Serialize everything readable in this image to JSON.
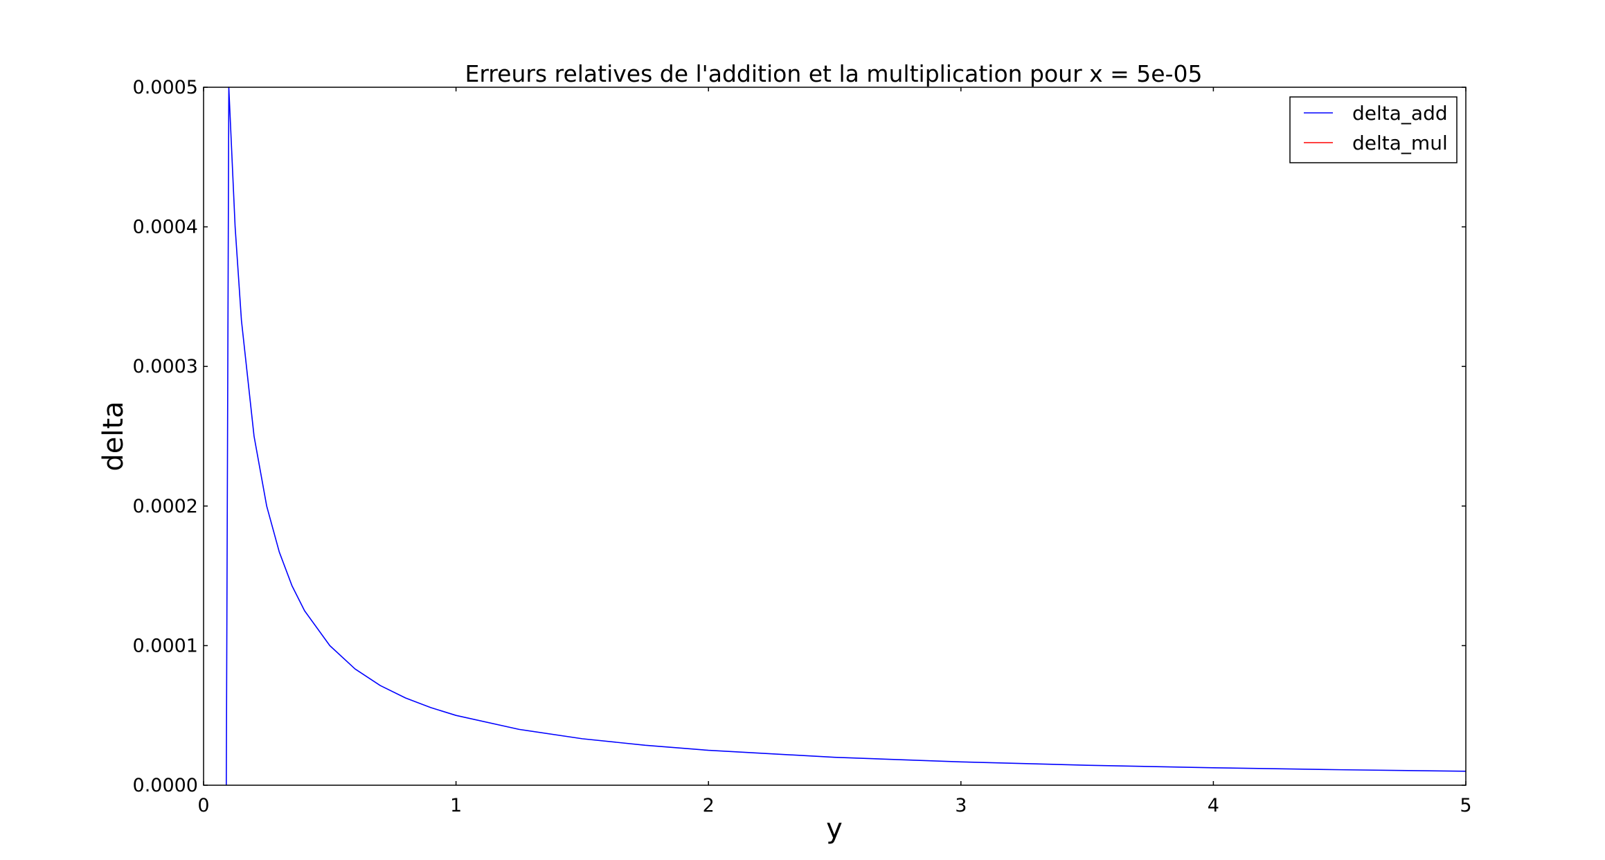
{
  "chart_data": {
    "type": "line",
    "title": "Erreurs relatives de l'addition et la multiplication pour x = 5e-05",
    "xlabel": "y",
    "ylabel": "delta",
    "xlim": [
      0,
      5
    ],
    "ylim": [
      0,
      0.0005
    ],
    "x_ticks": [
      "0",
      "1",
      "2",
      "3",
      "4",
      "5"
    ],
    "y_ticks": [
      "0.0000",
      "0.0001",
      "0.0002",
      "0.0003",
      "0.0004",
      "0.0005"
    ],
    "grid": false,
    "legend_position": "top-right",
    "series": [
      {
        "name": "delta_add",
        "color": "#0000ff",
        "x": [
          0.09,
          0.1,
          0.125,
          0.15,
          0.2,
          0.25,
          0.3,
          0.35,
          0.4,
          0.5,
          0.6,
          0.7,
          0.8,
          0.9,
          1.0,
          1.25,
          1.5,
          1.75,
          2.0,
          2.5,
          3.0,
          3.5,
          4.0,
          4.5,
          5.0
        ],
        "y": [
          0.0,
          0.0005,
          0.0004,
          0.000333,
          0.00025,
          0.0002,
          0.000167,
          0.000143,
          0.000125,
          0.0001,
          8.33e-05,
          7.14e-05,
          6.25e-05,
          5.56e-05,
          5e-05,
          4e-05,
          3.33e-05,
          2.86e-05,
          2.5e-05,
          2e-05,
          1.67e-05,
          1.43e-05,
          1.25e-05,
          1.11e-05,
          1e-05
        ]
      },
      {
        "name": "delta_mul",
        "color": "#ff0000",
        "x": [],
        "y": []
      }
    ]
  }
}
